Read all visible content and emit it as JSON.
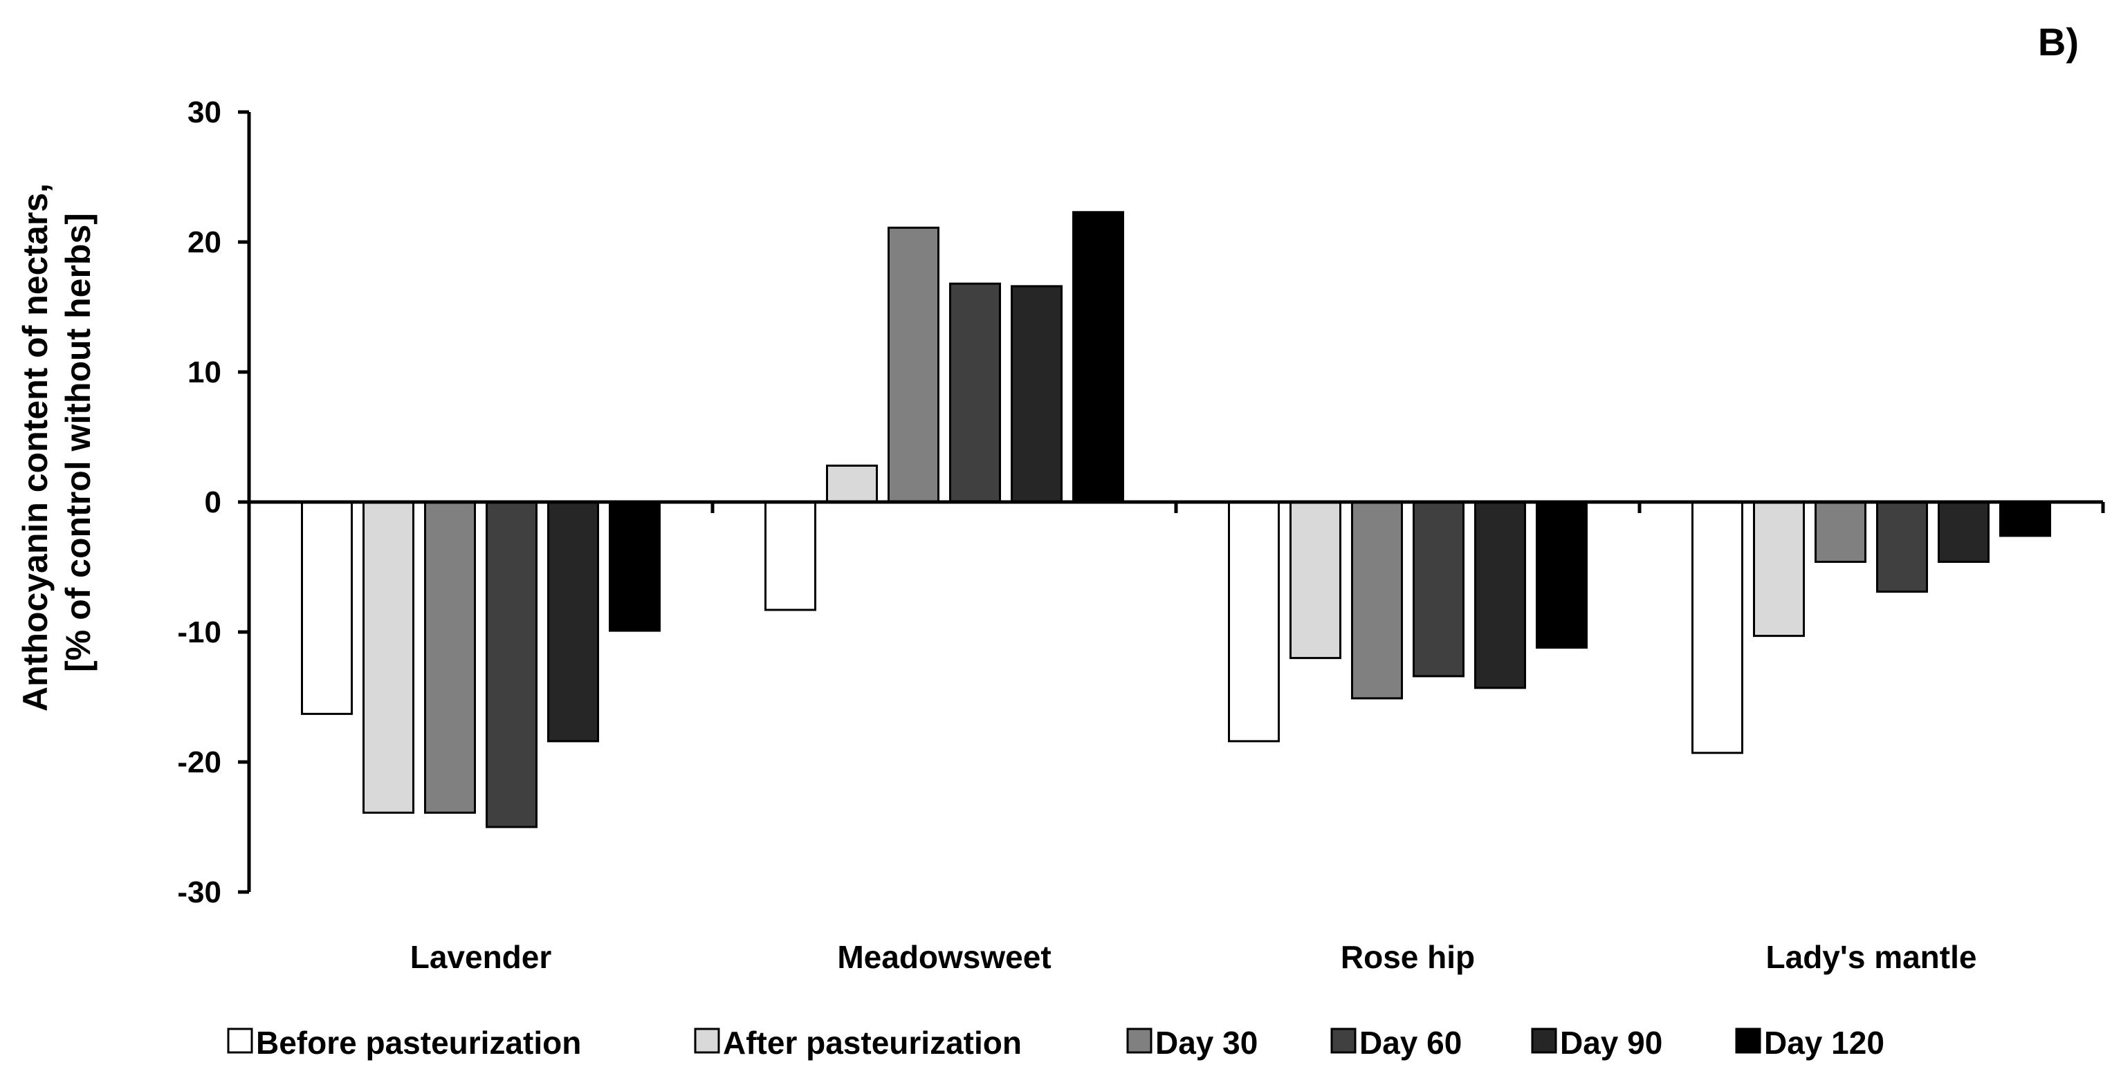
{
  "chart_data": {
    "type": "bar",
    "panel_label": "B)",
    "title": "",
    "xlabel": "",
    "ylabel": [
      "Anthocyanin content of nectars,",
      "[% of control without herbs]"
    ],
    "ylim": [
      -30,
      30
    ],
    "yticks": [
      30,
      20,
      10,
      0,
      -10,
      -20,
      -30
    ],
    "grid": false,
    "legend_position": "bottom",
    "categories": [
      "Lavender",
      "Meadowsweet",
      "Rose hip",
      "Lady's mantle"
    ],
    "series": [
      {
        "name": "Before pasteurization",
        "color": "#ffffff",
        "values": [
          -16.3,
          -8.3,
          -18.4,
          -19.3
        ]
      },
      {
        "name": "After pasteurization",
        "color": "#d9d9d9",
        "values": [
          -23.9,
          2.8,
          -12.0,
          -10.3
        ]
      },
      {
        "name": "Day 30",
        "color": "#808080",
        "values": [
          -23.9,
          21.1,
          -15.1,
          -4.6
        ]
      },
      {
        "name": "Day 60",
        "color": "#404040",
        "values": [
          -25.0,
          16.8,
          -13.4,
          -6.9
        ]
      },
      {
        "name": "Day 90",
        "color": "#262626",
        "values": [
          -18.4,
          16.6,
          -14.3,
          -4.6
        ]
      },
      {
        "name": "Day 120",
        "color": "#000000",
        "values": [
          -9.9,
          22.3,
          -11.2,
          -2.6
        ]
      }
    ]
  }
}
